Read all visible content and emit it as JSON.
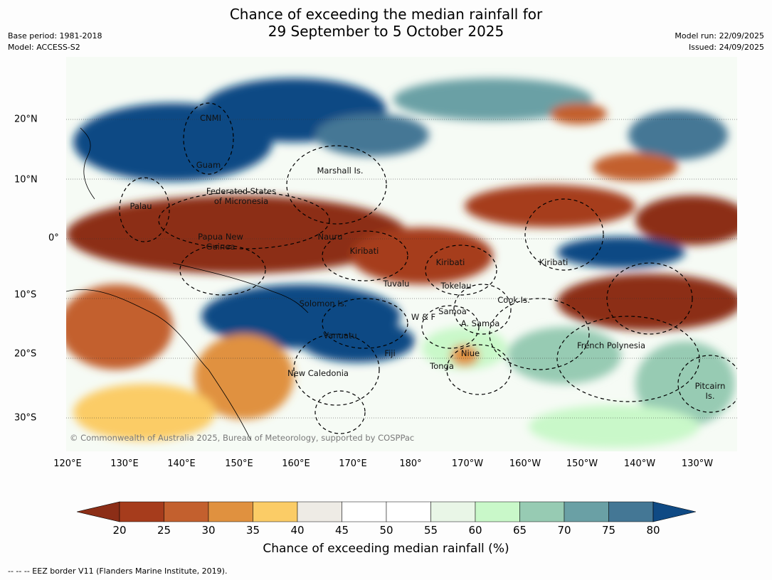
{
  "title_line1": "Chance of exceeding the median rainfall for",
  "title_line2": "29 September to 5 October 2025",
  "base_period": "Base period: 1981-2018",
  "model": "Model: ACCESS-S2",
  "model_run": "Model run: 22/09/2025",
  "issued": "Issued: 24/09/2025",
  "copyright": "© Commonwealth of Australia 2025, Bureau of Meteorology, supported by COSPPac",
  "footer": "--  --  -- EEZ border V11 (Flanders Marine Institute, 2019).",
  "lon_ticks": [
    "120°E",
    "130°E",
    "140°E",
    "150°E",
    "160°E",
    "170°E",
    "180°",
    "170°W",
    "160°W",
    "150°W",
    "140°W",
    "130°W"
  ],
  "lat_ticks": [
    "20°N",
    "10°N",
    "0°",
    "10°S",
    "20°S",
    "30°S"
  ],
  "regions": {
    "cnmi": "CNMI",
    "guam": "Guam",
    "marshall": "Marshall Is.",
    "fsm1": "Federated States",
    "fsm2": "of Micronesia",
    "palau": "Palau",
    "png1": "Papua New",
    "png2": "Guinea",
    "nauru": "Nauru",
    "kiribati_w": "Kiribati",
    "kiribati_c": "Kiribati",
    "kiribati_e": "Kiribati",
    "tuvalu": "Tuvalu",
    "tokelau": "Tokelau",
    "cook": "Cook Is.",
    "solomon": "Solomon Is.",
    "wf": "W & F",
    "samoa": "Samoa",
    "asamoa": "A. Samoa",
    "vanuatu": "Vanuatu",
    "fiji": "Fiji",
    "niue": "Niue",
    "tonga": "Tonga",
    "frenchpoly": "French Polynesia",
    "newcal": "New Caledonia",
    "pitcairn1": "Pitcairn",
    "pitcairn2": "Is."
  },
  "colorbar": {
    "ticks": [
      "20",
      "25",
      "30",
      "35",
      "40",
      "45",
      "50",
      "55",
      "60",
      "65",
      "70",
      "75",
      "80"
    ],
    "colors": [
      "#a63c1c",
      "#c3602e",
      "#e0913f",
      "#fbcc66",
      "#eeebe5",
      "#ffffff",
      "#ffffff",
      "#e9f6e7",
      "#c9f8c9",
      "#97cbb3",
      "#6aa0a5",
      "#447795",
      "#0f4a84"
    ],
    "below_color": "#8c2e17",
    "label": "Chance of exceeding median rainfall (%)"
  }
}
